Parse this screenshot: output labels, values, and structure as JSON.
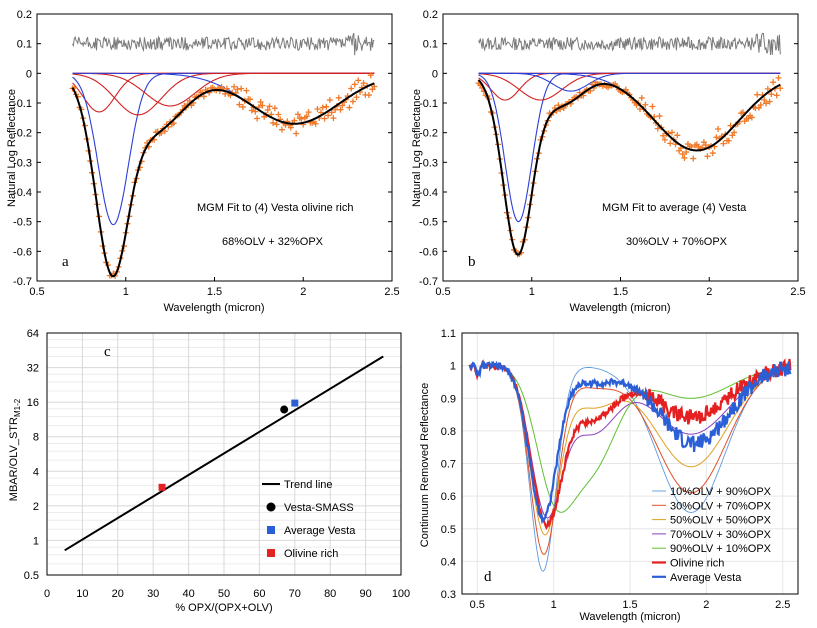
{
  "colors": {
    "data": "#f07a2a",
    "fit": "#000000",
    "olivine_band": "#d42020",
    "pyroxene_band": "#2a3fd6",
    "residual": "#7a7a7a",
    "trend": "#000000",
    "smass": "#000000",
    "avg_vesta": "#2a5fd6",
    "olivine_rich": "#e52020",
    "mix10": "#5c9ae0",
    "mix30": "#e0502a",
    "mix50": "#e0a020",
    "mix70": "#8a40c0",
    "mix90": "#60c030",
    "grid": "#d8d8d8"
  },
  "chart_data": [
    {
      "id": "a",
      "type": "line",
      "panel_letter": "a",
      "xlabel": "Wavelength (micron)",
      "ylabel": "Natural Log Reflectance",
      "xlim": [
        0.5,
        2.5
      ],
      "ylim": [
        -0.7,
        0.2
      ],
      "xticks": [
        "0.5",
        "1",
        "1.5",
        "2",
        "2.5"
      ],
      "yticks": [
        "0.2",
        "0.1",
        "0",
        "-0.1",
        "-0.2",
        "-0.3",
        "-0.4",
        "-0.5",
        "-0.6",
        "-0.7"
      ],
      "annotation_title": "MGM Fit to (4) Vesta olivine rich",
      "annotation_composition": "68%OLV + 32%OPX",
      "bands": [
        {
          "kind": "olivine",
          "center": 0.85,
          "width": 0.09,
          "strength": -0.13
        },
        {
          "kind": "pyroxene",
          "center": 0.93,
          "width": 0.085,
          "strength": -0.51
        },
        {
          "kind": "olivine",
          "center": 1.07,
          "width": 0.13,
          "strength": -0.14
        },
        {
          "kind": "olivine",
          "center": 1.25,
          "width": 0.14,
          "strength": -0.11
        },
        {
          "kind": "pyroxene",
          "center": 1.95,
          "width": 0.25,
          "strength": -0.17
        }
      ],
      "data_range": [
        0.7,
        2.4
      ]
    },
    {
      "id": "b",
      "type": "line",
      "panel_letter": "b",
      "xlabel": "Wavelength (micron)",
      "ylabel": "Natural Log Reflectance",
      "xlim": [
        0.5,
        2.5
      ],
      "ylim": [
        -0.7,
        0.2
      ],
      "xticks": [
        "0.5",
        "1",
        "1.5",
        "2",
        "2.5"
      ],
      "yticks": [
        "0.2",
        "0.1",
        "0",
        "-0.1",
        "-0.2",
        "-0.3",
        "-0.4",
        "-0.5",
        "-0.6",
        "-0.7"
      ],
      "annotation_title": "MGM Fit to average (4) Vesta",
      "annotation_composition": "30%OLV + 70%OPX",
      "bands": [
        {
          "kind": "olivine",
          "center": 0.85,
          "width": 0.08,
          "strength": -0.09
        },
        {
          "kind": "pyroxene",
          "center": 0.925,
          "width": 0.075,
          "strength": -0.5
        },
        {
          "kind": "olivine",
          "center": 1.05,
          "width": 0.12,
          "strength": -0.09
        },
        {
          "kind": "pyroxene",
          "center": 1.22,
          "width": 0.1,
          "strength": -0.06
        },
        {
          "kind": "pyroxene",
          "center": 1.93,
          "width": 0.24,
          "strength": -0.26
        }
      ],
      "data_range": [
        0.7,
        2.4
      ]
    },
    {
      "id": "c",
      "type": "scatter",
      "panel_letter": "c",
      "xlabel": "% OPX/(OPX+OLV)",
      "ylabel": "MBAR/OLV_STR",
      "ylabel_sub": "M1-2",
      "yscale": "log2",
      "xlim": [
        0,
        100
      ],
      "ylim": [
        0.5,
        64
      ],
      "xticks": [
        "0",
        "10",
        "20",
        "30",
        "40",
        "50",
        "60",
        "70",
        "80",
        "90",
        "100"
      ],
      "yticks": [
        "0.5",
        "1",
        "2",
        "4",
        "8",
        "16",
        "32",
        "64"
      ],
      "trend": {
        "x": [
          5,
          95
        ],
        "y": [
          0.82,
          40
        ]
      },
      "points": [
        {
          "name": "Vesta-SMASS",
          "x": 67,
          "y": 13.8
        },
        {
          "name": "Average Vesta",
          "x": 70,
          "y": 15.7
        },
        {
          "name": "Olivine rich",
          "x": 32.5,
          "y": 2.9
        }
      ],
      "legend": [
        "Trend line",
        "Vesta-SMASS",
        "Average Vesta",
        "Olivine rich"
      ],
      "legend_position": "bottom-right"
    },
    {
      "id": "d",
      "type": "line",
      "panel_letter": "d",
      "xlabel": "Wavelength (micron)",
      "ylabel": "Continuum Removed Reflectance",
      "xlim": [
        0.4,
        2.6
      ],
      "ylim": [
        0.3,
        1.1
      ],
      "xticks": [
        "0.5",
        "1",
        "1.5",
        "2",
        "2.5"
      ],
      "yticks": [
        "1.1",
        "1",
        "0.9",
        "0.8",
        "0.7",
        "0.6",
        "0.5",
        "0.4",
        "0.3"
      ],
      "series": [
        {
          "name": "10%OLV + 90%OPX",
          "b1c": 0.93,
          "b1": 0.37,
          "b1w": 0.085,
          "b2c": 1.9,
          "b2": 0.55,
          "b2w": 0.22,
          "ol": 0.0
        },
        {
          "name": "30%OLV + 70%OPX",
          "b1c": 0.935,
          "b1": 0.43,
          "b1w": 0.09,
          "b2c": 1.9,
          "b2": 0.61,
          "b2w": 0.23,
          "ol": 0.06
        },
        {
          "name": "50%OLV + 50%OPX",
          "b1c": 0.94,
          "b1": 0.5,
          "b1w": 0.095,
          "b2c": 1.9,
          "b2": 0.69,
          "b2w": 0.24,
          "ol": 0.12
        },
        {
          "name": "70%OLV + 30%OPX",
          "b1c": 0.95,
          "b1": 0.57,
          "b1w": 0.1,
          "b2c": 1.9,
          "b2": 0.79,
          "b2w": 0.25,
          "ol": 0.2
        },
        {
          "name": "90%OLV + 10%OPX",
          "b1c": 1.0,
          "b1": 0.66,
          "b1w": 0.12,
          "b2c": 1.9,
          "b2": 0.9,
          "b2w": 0.26,
          "ol": 0.3
        },
        {
          "name": "Olivine rich",
          "b1c": 0.95,
          "b1": 0.54,
          "b1w": 0.1,
          "b2c": 1.9,
          "b2": 0.84,
          "b2w": 0.24,
          "ol": 0.16
        },
        {
          "name": "Average Vesta",
          "b1c": 0.93,
          "b1": 0.54,
          "b1w": 0.09,
          "b2c": 1.92,
          "b2": 0.76,
          "b2w": 0.23,
          "ol": 0.05
        }
      ],
      "legend_position": "bottom-right"
    }
  ]
}
